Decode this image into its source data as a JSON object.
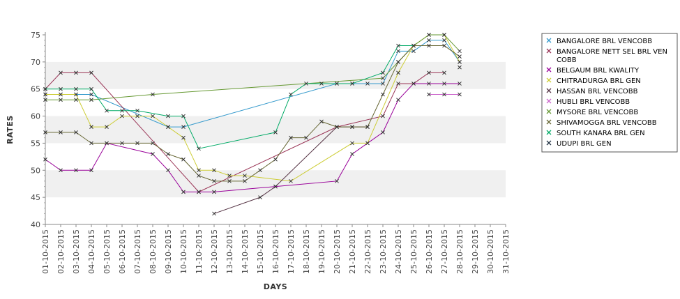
{
  "chart_data": {
    "type": "line",
    "title": "",
    "xlabel": "DAYS",
    "ylabel": "RATES",
    "ylim": [
      40,
      75
    ],
    "yticks": [
      40,
      45,
      50,
      55,
      60,
      65,
      70,
      75
    ],
    "grid": "alternating horizontal bands",
    "legend_position": "right",
    "categories": [
      "01-10-2015",
      "02-10-2015",
      "03-10-2015",
      "04-10-2015",
      "05-10-2015",
      "06-10-2015",
      "07-10-2015",
      "08-10-2015",
      "09-10-2015",
      "10-10-2015",
      "11-10-2015",
      "12-10-2015",
      "13-10-2015",
      "14-10-2015",
      "15-10-2015",
      "16-10-2015",
      "17-10-2015",
      "18-10-2015",
      "19-10-2015",
      "20-10-2015",
      "21-10-2015",
      "22-10-2015",
      "23-10-2015",
      "24-10-2015",
      "25-10-2015",
      "26-10-2015",
      "27-10-2015",
      "28-10-2015",
      "29-10-2015",
      "30-10-2015",
      "31-10-2015"
    ],
    "series": [
      {
        "name": "BANGALORE BRL VENCOBB",
        "color": "#3399cc",
        "values": [
          64,
          64,
          64,
          64,
          null,
          null,
          null,
          null,
          58,
          58,
          null,
          null,
          null,
          null,
          null,
          null,
          null,
          null,
          null,
          66,
          66,
          66,
          66,
          72,
          72,
          74,
          74,
          70,
          null,
          null,
          null
        ]
      },
      {
        "name": "BANGALORE NETT SEL BRL VENCOBB",
        "color": "#993355",
        "values": [
          65,
          68,
          68,
          68,
          null,
          null,
          null,
          null,
          null,
          null,
          46,
          null,
          null,
          null,
          null,
          null,
          null,
          null,
          null,
          58,
          null,
          null,
          60,
          66,
          66,
          68,
          68,
          null,
          null,
          null,
          null
        ]
      },
      {
        "name": "BELGAUM BRL KWALITY",
        "color": "#990099",
        "values": [
          52,
          50,
          50,
          50,
          55,
          null,
          null,
          53,
          50,
          46,
          46,
          46,
          null,
          null,
          null,
          47,
          null,
          null,
          null,
          48,
          53,
          55,
          57,
          63,
          66,
          66,
          66,
          66,
          null,
          null,
          null
        ]
      },
      {
        "name": "CHITRADURGA BRL GEN",
        "color": "#cccc33",
        "values": [
          64,
          64,
          64,
          58,
          58,
          60,
          60,
          60,
          58,
          56,
          50,
          50,
          49,
          49,
          null,
          null,
          48,
          null,
          null,
          null,
          55,
          55,
          null,
          68,
          73,
          75,
          75,
          70,
          null,
          null,
          null
        ]
      },
      {
        "name": "HASSAN BRL VENCOBB",
        "color": "#553344",
        "values": [
          null,
          null,
          null,
          null,
          null,
          null,
          null,
          null,
          null,
          null,
          null,
          42,
          null,
          null,
          45,
          47,
          null,
          null,
          null,
          58,
          58,
          58,
          null,
          null,
          null,
          null,
          null,
          null,
          null,
          null,
          null
        ]
      },
      {
        "name": "HUBLI BRL VENCOBB",
        "color": "#cc66cc",
        "values": [
          null,
          null,
          null,
          null,
          null,
          null,
          null,
          null,
          null,
          null,
          null,
          null,
          null,
          null,
          null,
          null,
          null,
          null,
          null,
          null,
          null,
          null,
          null,
          null,
          null,
          64,
          64,
          64,
          null,
          null,
          null
        ]
      },
      {
        "name": "MYSORE BRL VENCOBB",
        "color": "#669933",
        "values": [
          63,
          63,
          63,
          63,
          null,
          null,
          null,
          64,
          null,
          null,
          null,
          null,
          null,
          null,
          null,
          null,
          null,
          null,
          null,
          null,
          null,
          null,
          67,
          70,
          73,
          75,
          75,
          72,
          null,
          null,
          null
        ]
      },
      {
        "name": "SHIVAMOGGA BRL VENCOBB",
        "color": "#666633",
        "values": [
          57,
          57,
          57,
          55,
          55,
          55,
          55,
          55,
          53,
          52,
          49,
          48,
          48,
          48,
          50,
          52,
          56,
          56,
          59,
          58,
          58,
          58,
          64,
          70,
          73,
          73,
          73,
          71,
          null,
          null,
          null
        ]
      },
      {
        "name": "SOUTH KANARA BRL GEN",
        "color": "#00aa66",
        "values": [
          65,
          65,
          65,
          65,
          61,
          61,
          61,
          null,
          60,
          60,
          54,
          null,
          null,
          null,
          null,
          57,
          64,
          66,
          66,
          66,
          66,
          null,
          68,
          73,
          73,
          null,
          null,
          null,
          null,
          null,
          null
        ]
      },
      {
        "name": "UDUPI BRL GEN",
        "color": "#223344",
        "values": [
          null,
          null,
          null,
          null,
          null,
          null,
          null,
          null,
          null,
          null,
          null,
          null,
          null,
          null,
          null,
          null,
          null,
          null,
          null,
          null,
          null,
          null,
          null,
          null,
          null,
          null,
          null,
          69,
          null,
          null,
          null
        ]
      }
    ]
  }
}
